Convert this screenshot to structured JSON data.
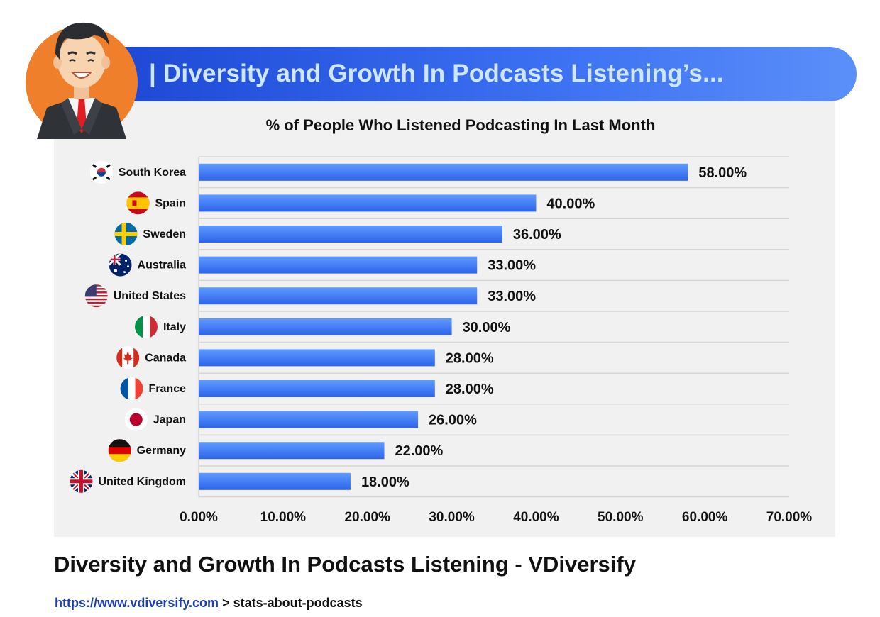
{
  "header": {
    "title": "| Diversity and Growth In Podcasts Listening’s..."
  },
  "footer": {
    "title": "Diversity and Growth In Podcasts Listening - VDiversify",
    "link_text": "https://www.vdiversify.com",
    "path_text": "> stats-about-podcasts"
  },
  "colors": {
    "bar_top": "#5f9bff",
    "bar_bottom": "#2d63ea",
    "banner": "#2f5ce6",
    "avatar_bg": "#f07f2b"
  },
  "chart_data": {
    "type": "bar",
    "orientation": "horizontal",
    "title": "% of People Who Listened Podcasting In Last Month",
    "xlabel": "",
    "ylabel": "",
    "xlim": [
      0,
      70
    ],
    "x_tick_values": [
      0,
      10,
      20,
      30,
      40,
      50,
      60,
      70
    ],
    "x_tick_labels": [
      "0.00%",
      "10.00%",
      "20.00%",
      "30.00%",
      "40.00%",
      "50.00%",
      "60.00%",
      "70.00%"
    ],
    "grid": true,
    "legend": "none",
    "categories": [
      "South Korea",
      "Spain",
      "Sweden",
      "Australia",
      "United States",
      "Italy",
      "Canada",
      "France",
      "Japan",
      "Germany",
      "United Kingdom"
    ],
    "flag_icons": [
      "south-korea-flag-icon",
      "spain-flag-icon",
      "sweden-flag-icon",
      "australia-flag-icon",
      "united-states-flag-icon",
      "italy-flag-icon",
      "canada-flag-icon",
      "france-flag-icon",
      "japan-flag-icon",
      "germany-flag-icon",
      "united-kingdom-flag-icon"
    ],
    "values": [
      58,
      40,
      36,
      33,
      33,
      30,
      28,
      28,
      26,
      22,
      18
    ],
    "value_labels": [
      "58.00%",
      "40.00%",
      "36.00%",
      "33.00%",
      "33.00%",
      "30.00%",
      "28.00%",
      "28.00%",
      "26.00%",
      "22.00%",
      "18.00%"
    ]
  }
}
